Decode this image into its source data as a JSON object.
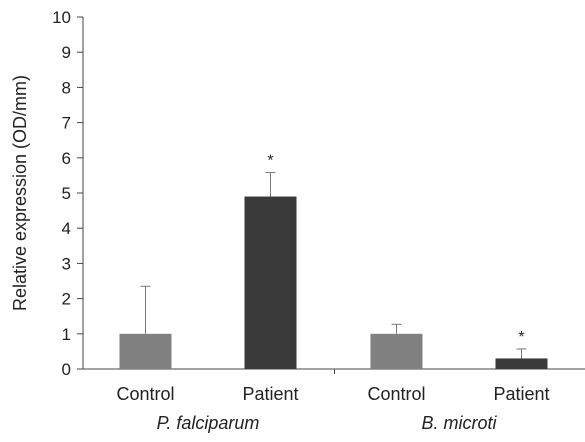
{
  "chart_data": {
    "type": "bar",
    "ylabel": "Relative expression (OD/mm)",
    "ylim": [
      0,
      10
    ],
    "yticks": [
      "0",
      "1",
      "2",
      "3",
      "4",
      "5",
      "6",
      "7",
      "8",
      "9",
      "10"
    ],
    "grid": false,
    "legend": "none",
    "groups": [
      "P. falciparum",
      "B. microti"
    ],
    "categories": [
      "Control",
      "Patient",
      "Control",
      "Patient"
    ],
    "bar_group": [
      0,
      0,
      1,
      1
    ],
    "values": [
      1.0,
      4.9,
      1.0,
      0.3
    ],
    "error_upper": [
      1.35,
      0.68,
      0.27,
      0.27
    ],
    "significance": [
      "",
      "*",
      "",
      "*"
    ],
    "colors": [
      "#808080",
      "#3a3a3a",
      "#808080",
      "#3a3a3a"
    ]
  }
}
